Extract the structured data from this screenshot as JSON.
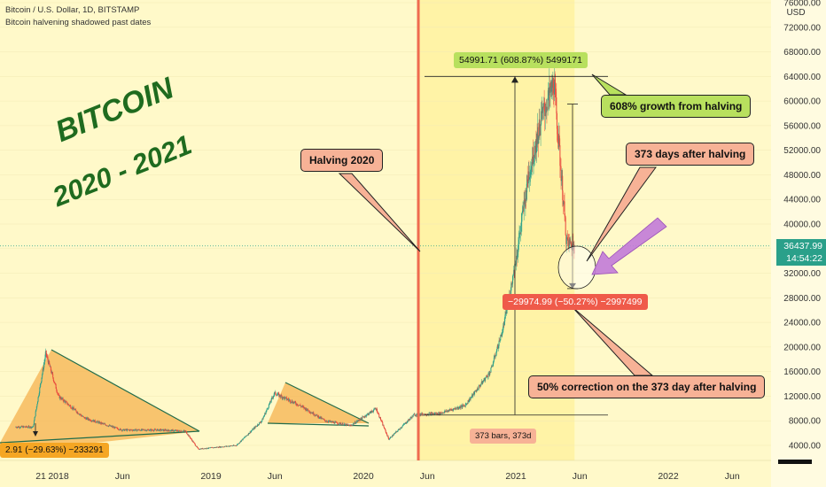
{
  "header": {
    "title": "Bitcoin / U.S. Dollar, 1D, BITSTAMP",
    "subtitle": "Bitcoin halvening shadowed past dates"
  },
  "annotations": {
    "big_title_1": "BITCOIN",
    "big_title_2": "2020 - 2021",
    "halving_label": "Halving 2020",
    "growth_label": "608% growth from halving",
    "days_label": "373 days after halving",
    "correction_label": "50% correction on the 373 day after halving",
    "measure_up": "54991.71 (608.87%) 5499171",
    "measure_down": "−29974.99 (−50.27%) −2997499",
    "bars_label": "373 bars, 373d",
    "left_measure": "2.91 (−29.63%) −233291"
  },
  "price_scale": {
    "currency": "USD",
    "current_price": "36437.99",
    "countdown": "14:54:22"
  },
  "colors": {
    "background": "#fff9c9",
    "halving_shade": "#fff3a6",
    "halving_line": "#ef6b50",
    "up_candle": "#2aa08a",
    "down_candle": "#e8483d",
    "triangle_fill": "#f5b24f",
    "green_label": "#b8e05e",
    "red_label": "#ef5a4a",
    "salmon_label": "#f7b296",
    "green_text": "#1f6b1f",
    "purple_arrow": "#c27ad8"
  },
  "chart_data": {
    "type": "candlestick",
    "title": "Bitcoin / U.S. Dollar, 1D, BITSTAMP",
    "y_axis": {
      "label": "USD",
      "ticks": [
        4000,
        8000,
        12000,
        16000,
        20000,
        24000,
        28000,
        32000,
        36000,
        40000,
        44000,
        48000,
        52000,
        56000,
        60000,
        64000,
        68000,
        72000,
        76000
      ],
      "range": [
        2000,
        78000
      ]
    },
    "x_axis": {
      "ticks": [
        "21",
        "2018",
        "Jun",
        "2019",
        "Jun",
        "2020",
        "Jun",
        "2021",
        "Jun",
        "2022",
        "Jun"
      ]
    },
    "price_path": [
      {
        "date": "2017-11",
        "price": 7000
      },
      {
        "date": "2017-12",
        "price": 19000
      },
      {
        "date": "2018-01",
        "price": 12000
      },
      {
        "date": "2018-03",
        "price": 8500
      },
      {
        "date": "2018-06",
        "price": 6500
      },
      {
        "date": "2018-09",
        "price": 6500
      },
      {
        "date": "2018-11",
        "price": 6300
      },
      {
        "date": "2018-12",
        "price": 3400
      },
      {
        "date": "2019-03",
        "price": 4000
      },
      {
        "date": "2019-05",
        "price": 8000
      },
      {
        "date": "2019-06",
        "price": 12500
      },
      {
        "date": "2019-08",
        "price": 10500
      },
      {
        "date": "2019-10",
        "price": 8000
      },
      {
        "date": "2019-12",
        "price": 7200
      },
      {
        "date": "2020-02",
        "price": 10000
      },
      {
        "date": "2020-03",
        "price": 5000
      },
      {
        "date": "2020-05",
        "price": 9000
      },
      {
        "date": "2020-07",
        "price": 9200
      },
      {
        "date": "2020-09",
        "price": 10500
      },
      {
        "date": "2020-11",
        "price": 16000
      },
      {
        "date": "2020-12",
        "price": 23000
      },
      {
        "date": "2021-01",
        "price": 34000
      },
      {
        "date": "2021-02",
        "price": 48000
      },
      {
        "date": "2021-03",
        "price": 57000
      },
      {
        "date": "2021-04",
        "price": 63000
      },
      {
        "date": "2021-05",
        "price": 37000
      },
      {
        "date": "2021-05-20",
        "price": 36437.99
      }
    ],
    "halving_date": "2020-05-11",
    "current_price": 36437.99,
    "measurements": [
      {
        "from": 9000,
        "to": 64000,
        "change": 54991.71,
        "percent": 608.87
      },
      {
        "from": 59500,
        "to": 29500,
        "change": -29974.99,
        "percent": -50.27
      },
      {
        "bars": 373,
        "days": 373
      }
    ]
  }
}
